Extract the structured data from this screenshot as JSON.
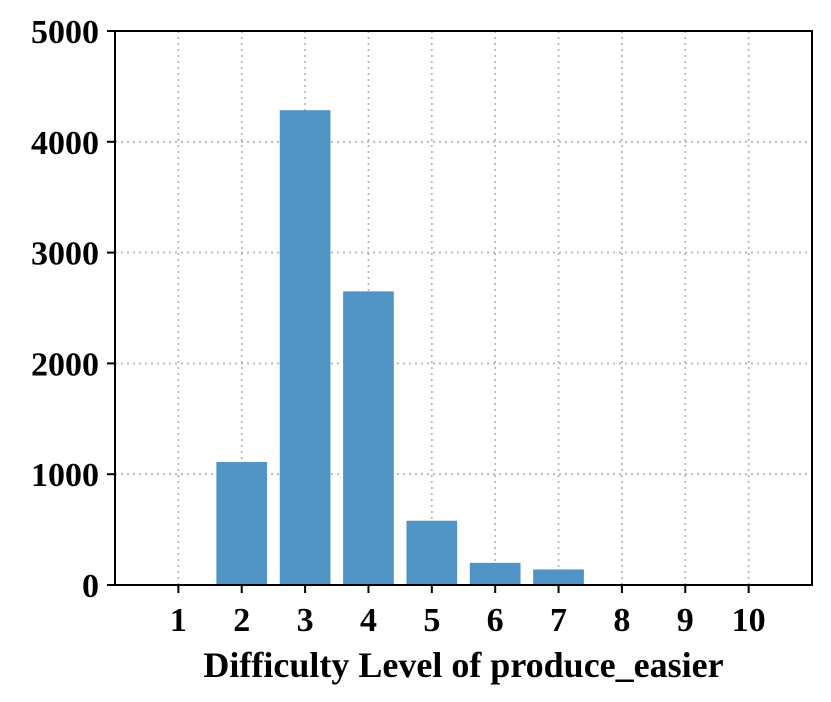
{
  "chart_data": {
    "type": "bar",
    "title": "",
    "xlabel": "Difficulty Level of produce_easier",
    "ylabel": "",
    "categories": [
      "1",
      "2",
      "3",
      "4",
      "5",
      "6",
      "7",
      "8",
      "9",
      "10"
    ],
    "values": [
      0,
      1110,
      4285,
      2650,
      580,
      200,
      140,
      0,
      0,
      0
    ],
    "ylim": [
      0,
      5000
    ],
    "yticks": [
      0,
      1000,
      2000,
      3000,
      4000,
      5000
    ],
    "grid": true,
    "bar_color": "#4f94c4"
  }
}
